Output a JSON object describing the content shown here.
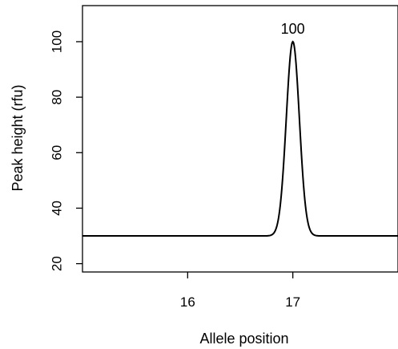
{
  "chart_data": {
    "type": "line",
    "title": "",
    "xlabel": "Allele position",
    "ylabel": "Peak height (rfu)",
    "xlim": [
      15.0,
      18.0
    ],
    "ylim": [
      17,
      113
    ],
    "x_ticks": [
      16,
      17
    ],
    "y_ticks": [
      20,
      40,
      60,
      80,
      100
    ],
    "grid": false,
    "series": [
      {
        "x": [
          15.0,
          16.0,
          16.7,
          16.75,
          16.8,
          16.85,
          16.9,
          16.95,
          17.0,
          17.05,
          17.1,
          17.15,
          17.2,
          17.25,
          17.3,
          18.0
        ],
        "values": [
          30,
          30,
          30.1,
          30.6,
          32.4,
          37.6,
          49.2,
          66.4,
          100,
          66.4,
          49.2,
          37.6,
          32.4,
          30.6,
          30.1,
          30
        ]
      }
    ],
    "annotations": [
      {
        "text": "100",
        "x": 17.0,
        "y": 100
      }
    ]
  }
}
